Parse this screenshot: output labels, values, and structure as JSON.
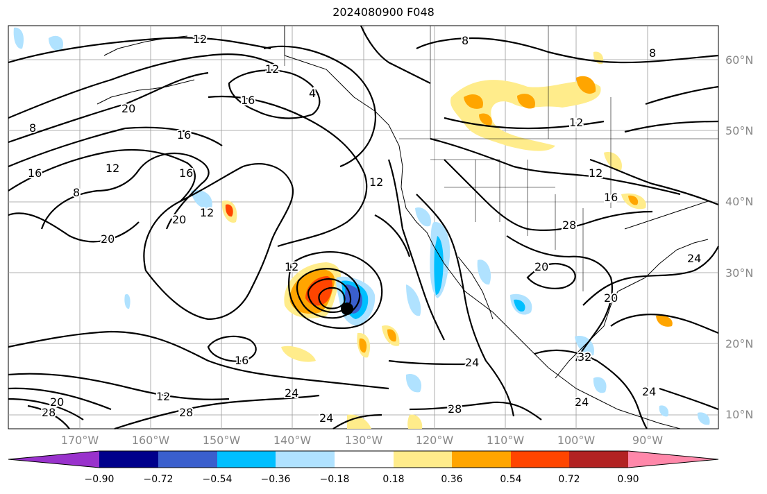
{
  "title": "2024080900 F048",
  "map": {
    "lat_labels": [
      "60°N",
      "50°N",
      "40°N",
      "30°N",
      "20°N",
      "10°N"
    ],
    "lon_labels": [
      "170°W",
      "160°W",
      "150°W",
      "140°W",
      "130°W",
      "120°W",
      "110°W",
      "100°W",
      "90°W"
    ],
    "contour_labels": [
      "12",
      "12",
      "16",
      "20",
      "8",
      "16",
      "12",
      "8",
      "20",
      "16",
      "12",
      "20",
      "12",
      "16",
      "16",
      "12",
      "12",
      "8",
      "8",
      "12",
      "20",
      "28",
      "24",
      "24",
      "28",
      "24",
      "24",
      "28",
      "32",
      "24",
      "24",
      "12",
      "16",
      "20",
      "20",
      "28",
      "4"
    ]
  },
  "colorbar": {
    "labels": [
      "−0.90",
      "−0.72",
      "−0.54",
      "−0.36",
      "−0.18",
      "0.18",
      "0.36",
      "0.54",
      "0.72",
      "0.90"
    ],
    "colors": [
      "#9932cc",
      "#00008b",
      "#3a5fcd",
      "#00bfff",
      "#b0e2ff",
      "#ffffff",
      "#ffec8b",
      "#ffa500",
      "#ff4500",
      "#b22222",
      "#ff88aa"
    ]
  },
  "markers": {
    "storm_center": "black-dot"
  }
}
